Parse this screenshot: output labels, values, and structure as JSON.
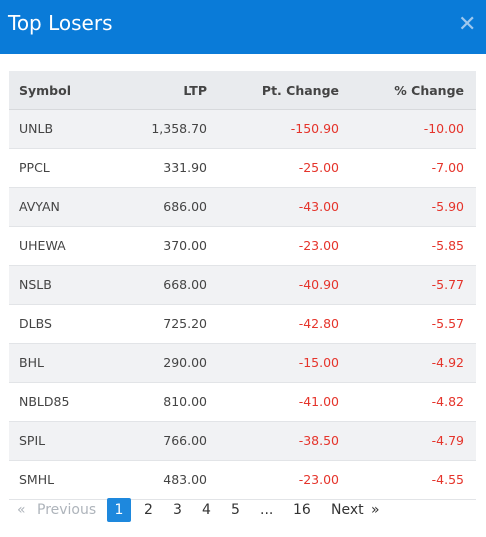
{
  "modal": {
    "title": "Top Losers",
    "close_glyph": "✕"
  },
  "table": {
    "headers": [
      "Symbol",
      "LTP",
      "Pt. Change",
      "% Change"
    ],
    "rows": [
      {
        "symbol": "UNLB",
        "ltp": "1,358.70",
        "pt_change": "-150.90",
        "pct_change": "-10.00"
      },
      {
        "symbol": "PPCL",
        "ltp": "331.90",
        "pt_change": "-25.00",
        "pct_change": "-7.00"
      },
      {
        "symbol": "AVYAN",
        "ltp": "686.00",
        "pt_change": "-43.00",
        "pct_change": "-5.90"
      },
      {
        "symbol": "UHEWA",
        "ltp": "370.00",
        "pt_change": "-23.00",
        "pct_change": "-5.85"
      },
      {
        "symbol": "NSLB",
        "ltp": "668.00",
        "pt_change": "-40.90",
        "pct_change": "-5.77"
      },
      {
        "symbol": "DLBS",
        "ltp": "725.20",
        "pt_change": "-42.80",
        "pct_change": "-5.57"
      },
      {
        "symbol": "BHL",
        "ltp": "290.00",
        "pt_change": "-15.00",
        "pct_change": "-4.92"
      },
      {
        "symbol": "NBLD85",
        "ltp": "810.00",
        "pt_change": "-41.00",
        "pct_change": "-4.82"
      },
      {
        "symbol": "SPIL",
        "ltp": "766.00",
        "pt_change": "-38.50",
        "pct_change": "-4.79"
      },
      {
        "symbol": "SMHL",
        "ltp": "483.00",
        "pt_change": "-23.00",
        "pct_change": "-4.55"
      }
    ]
  },
  "pagination": {
    "first_glyph": "«",
    "previous_label": "Previous",
    "pages": [
      "1",
      "2",
      "3",
      "4",
      "5",
      "...",
      "16"
    ],
    "current_page": "1",
    "next_label": "Next",
    "last_glyph": "»"
  },
  "colors": {
    "header_bg": "#0a7bd8",
    "negative": "#e5342b",
    "active_page": "#1e88dd"
  }
}
